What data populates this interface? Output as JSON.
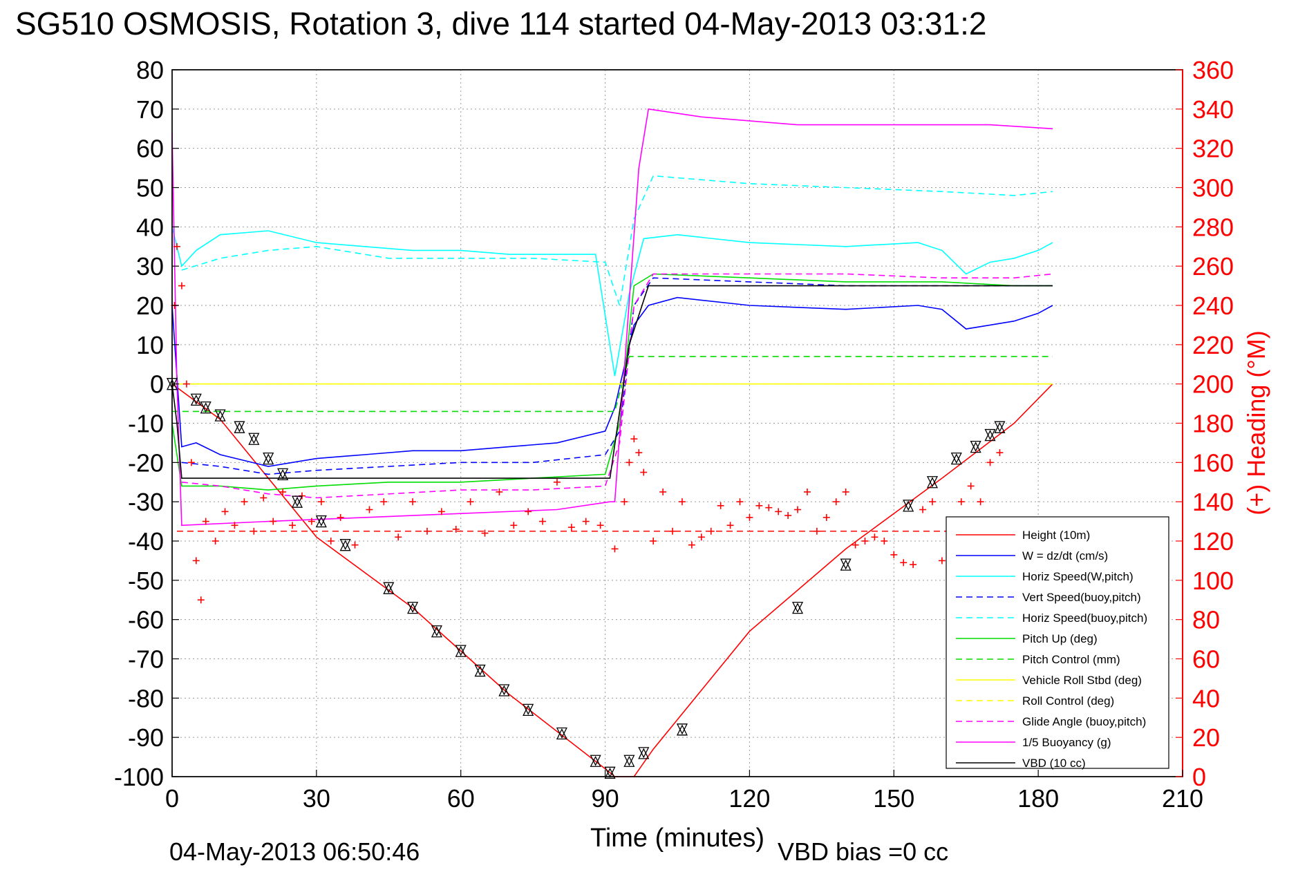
{
  "figure": {
    "title": "SG510 OSMOSIS, Rotation 3, dive 114 started 04-May-2013 03:31:2",
    "footer_left": "04-May-2013 06:50:46",
    "footer_right": "VBD bias =0 cc"
  },
  "colors": {
    "height": "#ff0000",
    "w": "#0000ff",
    "horiz_w": "#00ffff",
    "vert_buoy": "#0000ff",
    "horiz_buoy": "#00ffff",
    "pitch_up": "#00dd00",
    "pitch_control": "#00dd00",
    "roll": "#ffff00",
    "roll_control": "#ffff00",
    "glide_angle": "#ff00ff",
    "buoyancy": "#ff00ff",
    "vbd": "#000000",
    "heading": "#ff0000"
  },
  "chart_data": {
    "type": "line",
    "title": "SG510 OSMOSIS, Rotation 3, dive 114 started 04-May-2013 03:31:2",
    "xlabel": "Time (minutes)",
    "ylabel": "",
    "ylabel_right": "(+) Heading (°M)",
    "xlim": [
      0,
      210
    ],
    "ylim": [
      -100,
      80
    ],
    "ylim_right": [
      0,
      360
    ],
    "grid": true,
    "legend_position": "bottom-right",
    "x_ticks": [
      "0",
      "30",
      "60",
      "90",
      "120",
      "150",
      "180",
      "210"
    ],
    "y_ticks": [
      "80",
      "70",
      "60",
      "50",
      "40",
      "30",
      "20",
      "10",
      "0",
      "-10",
      "-20",
      "-30",
      "-40",
      "-50",
      "-60",
      "-70",
      "-80",
      "-90",
      "-100"
    ],
    "y_ticks_right": [
      "360",
      "340",
      "320",
      "300",
      "280",
      "260",
      "240",
      "220",
      "200",
      "180",
      "160",
      "140",
      "120",
      "100",
      "80",
      "60",
      "40",
      "20",
      "0"
    ],
    "series": [
      {
        "name": "Height (10m)",
        "key": "height",
        "style": "solid",
        "x": [
          0,
          10,
          30,
          50,
          70,
          90,
          92,
          96,
          100,
          120,
          140,
          160,
          175,
          183
        ],
        "y": [
          0,
          -9,
          -39,
          -57,
          -79,
          -98,
          -100,
          -100,
          -93,
          -63,
          -42,
          -24,
          -10,
          0
        ]
      },
      {
        "name": "W = dz/dt (cm/s)",
        "key": "w",
        "style": "solid",
        "x": [
          0,
          2,
          5,
          10,
          20,
          30,
          40,
          50,
          60,
          70,
          80,
          90,
          92,
          96,
          99,
          105,
          120,
          140,
          155,
          160,
          165,
          170,
          175,
          180,
          183
        ],
        "y": [
          20,
          -16,
          -15,
          -18,
          -21,
          -19,
          -18,
          -17,
          -17,
          -16,
          -15,
          -12,
          -6,
          15,
          20,
          22,
          20,
          19,
          20,
          19,
          14,
          15,
          16,
          18,
          20
        ]
      },
      {
        "name": "Horiz Speed(W,pitch)",
        "key": "horiz_w",
        "style": "solid",
        "x": [
          0,
          2,
          5,
          10,
          20,
          30,
          40,
          50,
          60,
          70,
          80,
          88,
          92,
          95,
          98,
          105,
          120,
          140,
          155,
          160,
          165,
          170,
          175,
          180,
          183
        ],
        "y": [
          40,
          30,
          34,
          38,
          39,
          36,
          35,
          34,
          34,
          33,
          33,
          33,
          2,
          23,
          37,
          38,
          36,
          35,
          36,
          34,
          28,
          31,
          32,
          34,
          36
        ]
      },
      {
        "name": "Vert Speed(buoy,pitch)",
        "key": "vert_buoy",
        "style": "dashed",
        "x": [
          2,
          10,
          20,
          30,
          45,
          60,
          75,
          90,
          93,
          96,
          100,
          120,
          140,
          160,
          175,
          183
        ],
        "y": [
          -20,
          -21,
          -23,
          -22,
          -21,
          -20,
          -20,
          -18,
          -12,
          20,
          27,
          26,
          25,
          25,
          25,
          25
        ]
      },
      {
        "name": "Horiz Speed(buoy,pitch)",
        "key": "horiz_buoy",
        "style": "dashed",
        "x": [
          2,
          10,
          20,
          30,
          45,
          60,
          75,
          90,
          93,
          96,
          100,
          120,
          140,
          160,
          175,
          183
        ],
        "y": [
          29,
          32,
          34,
          35,
          32,
          32,
          32,
          31,
          20,
          42,
          53,
          51,
          50,
          49,
          48,
          49
        ]
      },
      {
        "name": "Pitch Up (deg)",
        "key": "pitch_up",
        "style": "solid",
        "x": [
          0,
          2,
          10,
          20,
          30,
          45,
          60,
          75,
          90,
          93,
          96,
          100,
          120,
          140,
          160,
          175,
          183
        ],
        "y": [
          -10,
          -26,
          -26,
          -27,
          -26,
          -25,
          -25,
          -24,
          -23,
          -10,
          25,
          28,
          27,
          26,
          26,
          25,
          25
        ]
      },
      {
        "name": "Pitch Control (mm)",
        "key": "pitch_control",
        "style": "dashed",
        "x": [
          0,
          2,
          10,
          30,
          60,
          90,
          92,
          95,
          100,
          130,
          160,
          183
        ],
        "y": [
          -7,
          -7,
          -7,
          -7,
          -7,
          -7,
          -7,
          7,
          7,
          7,
          7,
          7
        ]
      },
      {
        "name": "Vehicle Roll Stbd (deg)",
        "key": "roll",
        "style": "solid",
        "x": [
          0,
          10,
          30,
          60,
          90,
          95,
          100,
          130,
          160,
          183
        ],
        "y": [
          0,
          0,
          0,
          0,
          0,
          0,
          0,
          0,
          0,
          0
        ]
      },
      {
        "name": "Roll Control (deg)",
        "key": "roll_control",
        "style": "dashed",
        "x": [
          0,
          10,
          30,
          60,
          90,
          95,
          100,
          130,
          160,
          183
        ],
        "y": [
          0,
          0,
          0,
          0,
          0,
          0,
          0,
          0,
          0,
          0
        ]
      },
      {
        "name": "Glide Angle (buoy,pitch)",
        "key": "glide_angle",
        "style": "dashed",
        "x": [
          2,
          10,
          20,
          30,
          45,
          60,
          75,
          90,
          93,
          96,
          100,
          120,
          140,
          160,
          175,
          183
        ],
        "y": [
          -25,
          -26,
          -28,
          -29,
          -28,
          -27,
          -27,
          -26,
          -15,
          20,
          28,
          28,
          28,
          27,
          27,
          28
        ]
      },
      {
        "name": "1/5 Buoyancy (g)",
        "key": "buoyancy",
        "style": "solid",
        "x": [
          0,
          1,
          2,
          20,
          40,
          60,
          80,
          91,
          92,
          97,
          99,
          110,
          130,
          150,
          170,
          183
        ],
        "y": [
          64,
          0,
          -36,
          -35,
          -34,
          -33,
          -32,
          -30,
          -30,
          55,
          70,
          68,
          66,
          66,
          66,
          65
        ]
      },
      {
        "name": "VBD (10 cc)",
        "key": "vbd",
        "style": "solid",
        "x": [
          0,
          1,
          2,
          10,
          30,
          60,
          90,
          91,
          95,
          99,
          120,
          150,
          183
        ],
        "y": [
          0,
          -10,
          -24,
          -24,
          -24,
          -24,
          -24,
          -24,
          10,
          25,
          25,
          25,
          25
        ]
      }
    ],
    "heading": {
      "name": "(+) Heading (°M)",
      "key": "heading",
      "axis": "right",
      "x": [
        0.5,
        1,
        2,
        3,
        4,
        5,
        6,
        7,
        9,
        11,
        13,
        15,
        17,
        19,
        21,
        23,
        25,
        27,
        29,
        31,
        33,
        35,
        38,
        41,
        44,
        47,
        50,
        53,
        56,
        59,
        62,
        65,
        68,
        71,
        74,
        77,
        80,
        83,
        86,
        89,
        92,
        94,
        95,
        96,
        97,
        98,
        100,
        102,
        104,
        106,
        108,
        110,
        112,
        114,
        116,
        118,
        120,
        122,
        124,
        126,
        128,
        130,
        132,
        134,
        136,
        138,
        140,
        142,
        144,
        146,
        148,
        150,
        152,
        154,
        156,
        158,
        160,
        162,
        164,
        166,
        168,
        170,
        172
      ],
      "y": [
        240,
        270,
        250,
        200,
        160,
        110,
        90,
        130,
        120,
        135,
        128,
        140,
        125,
        142,
        130,
        145,
        128,
        143,
        130,
        140,
        120,
        132,
        118,
        136,
        140,
        122,
        140,
        125,
        135,
        126,
        140,
        124,
        145,
        128,
        135,
        130,
        150,
        127,
        130,
        128,
        116,
        140,
        160,
        172,
        165,
        155,
        120,
        145,
        125,
        140,
        118,
        122,
        125,
        138,
        128,
        140,
        132,
        138,
        137,
        135,
        133,
        136,
        145,
        125,
        132,
        140,
        145,
        118,
        120,
        122,
        120,
        113,
        109,
        108,
        136,
        140,
        110,
        127,
        140,
        148,
        140,
        160,
        165
      ]
    },
    "reference_lines": [
      {
        "key": "heading",
        "style": "dashed",
        "axis": "right",
        "value": 125,
        "x_range": [
          1,
          183
        ]
      }
    ],
    "depth_markers": {
      "x": [
        0,
        5,
        7,
        10,
        14,
        17,
        20,
        23,
        26,
        31,
        36,
        45,
        50,
        55,
        60,
        64,
        69,
        74,
        81,
        88,
        91,
        95,
        98,
        106,
        130,
        140,
        153,
        158,
        163,
        167,
        170,
        172
      ],
      "y": [
        0,
        -4,
        -6,
        -8,
        -11,
        -14,
        -19,
        -23,
        -30,
        -35,
        -41,
        -52,
        -57,
        -63,
        -68,
        -73,
        -78,
        -83,
        -89,
        -96,
        -99,
        -96,
        -94,
        -88,
        -57,
        -46,
        -31,
        -25,
        -19,
        -16,
        -13,
        -11
      ]
    }
  }
}
